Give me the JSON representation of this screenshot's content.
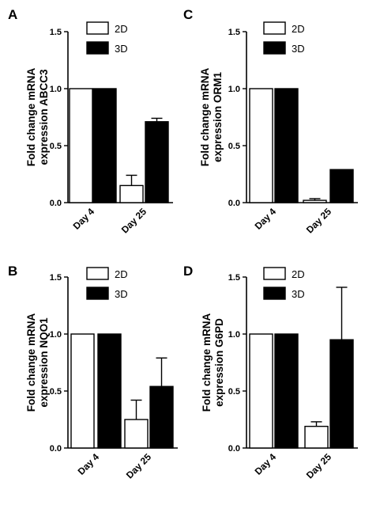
{
  "legend": {
    "series": [
      "2D",
      "3D"
    ],
    "colors": [
      "#ffffff",
      "#000000"
    ]
  },
  "chart_data": [
    {
      "panel": "A",
      "type": "bar",
      "ylabel": [
        "Fold change mRNA",
        "expression ABCC3"
      ],
      "categories": [
        "Day 4",
        "Day 25"
      ],
      "ylim": [
        0,
        1.5
      ],
      "yticks": [
        0.0,
        0.5,
        1.0,
        1.5
      ],
      "ytick_labels": [
        "0.0",
        "0.5",
        "1.0",
        "1.5"
      ],
      "series": [
        {
          "name": "2D",
          "values": [
            1.0,
            0.15
          ],
          "errors": [
            0,
            0.09
          ]
        },
        {
          "name": "3D",
          "values": [
            1.0,
            0.71
          ],
          "errors": [
            0,
            0.03
          ]
        }
      ]
    },
    {
      "panel": "C",
      "type": "bar",
      "ylabel": [
        "Fold change mRNA",
        "expression ORM1"
      ],
      "categories": [
        "Day 4",
        "Day 25"
      ],
      "ylim": [
        0,
        1.5
      ],
      "yticks": [
        0.0,
        0.5,
        1.0,
        1.5
      ],
      "ytick_labels": [
        "0.0",
        "0.5",
        "1.0",
        "1.5"
      ],
      "series": [
        {
          "name": "2D",
          "values": [
            1.0,
            0.02
          ],
          "errors": [
            0,
            0.015
          ]
        },
        {
          "name": "3D",
          "values": [
            1.0,
            0.29
          ],
          "errors": [
            0,
            0
          ]
        }
      ]
    },
    {
      "panel": "B",
      "type": "bar",
      "ylabel": [
        "Fold change mRNA",
        "expression NQO1"
      ],
      "categories": [
        "Day 4",
        "Day 25"
      ],
      "ylim": [
        0,
        1.5
      ],
      "yticks": [
        0.0,
        0.5,
        1.0,
        1.5
      ],
      "ytick_labels": [
        "0.0",
        "0.5",
        "1.0",
        "1.5"
      ],
      "series": [
        {
          "name": "2D",
          "values": [
            1.0,
            0.25
          ],
          "errors": [
            0,
            0.17
          ]
        },
        {
          "name": "3D",
          "values": [
            1.0,
            0.54
          ],
          "errors": [
            0,
            0.25
          ]
        }
      ]
    },
    {
      "panel": "D",
      "type": "bar",
      "ylabel": [
        "Fold change mRNA",
        "expression G6PD"
      ],
      "categories": [
        "Day 4",
        "Day 25"
      ],
      "ylim": [
        0,
        1.5
      ],
      "yticks": [
        0.0,
        0.5,
        1.0,
        1.5
      ],
      "ytick_labels": [
        "0.0",
        "0.5",
        "1.0",
        "1.5"
      ],
      "series": [
        {
          "name": "2D",
          "values": [
            1.0,
            0.19
          ],
          "errors": [
            0,
            0.04
          ]
        },
        {
          "name": "3D",
          "values": [
            1.0,
            0.95
          ],
          "errors": [
            0,
            0.46
          ]
        }
      ]
    }
  ]
}
